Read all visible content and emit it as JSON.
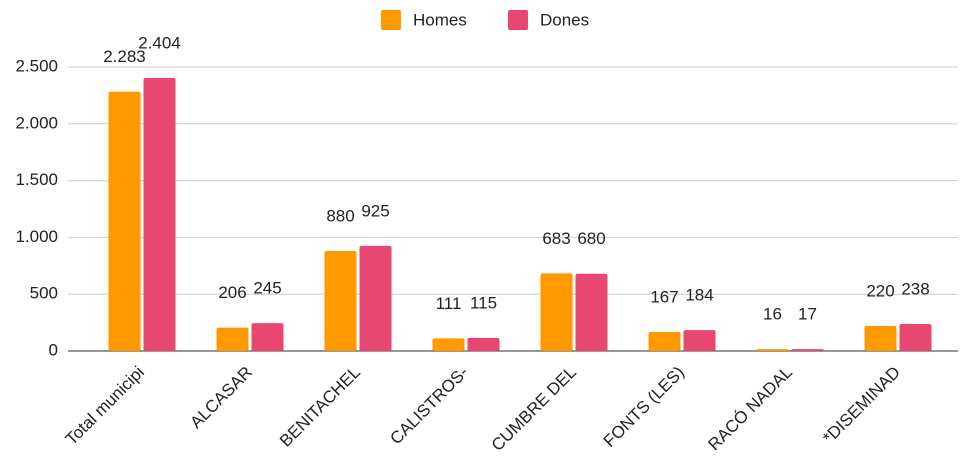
{
  "chart_data": {
    "type": "bar",
    "categories": [
      "Total municipi",
      "ALCASAR",
      "BENITACHEL",
      "CALISTROS-",
      "CUMBRE DEL",
      "FONTS (LES)",
      "RACÓ NADAL",
      "*DISEMINAD"
    ],
    "series": [
      {
        "name": "Homes",
        "color": "#ff9900",
        "values": [
          2283,
          206,
          880,
          111,
          683,
          167,
          16,
          220
        ],
        "value_labels": [
          "2.283",
          "206",
          "880",
          "111",
          "683",
          "167",
          "16",
          "220"
        ]
      },
      {
        "name": "Dones",
        "color": "#e8476f",
        "values": [
          2404,
          245,
          925,
          115,
          680,
          184,
          17,
          238
        ],
        "value_labels": [
          "2.404",
          "245",
          "925",
          "115",
          "680",
          "184",
          "17",
          "238"
        ]
      }
    ],
    "ylim": [
      0,
      2500
    ],
    "yticks": [
      0,
      500,
      {
        "value": 1000,
        "label": "1.000"
      },
      {
        "value": 1500,
        "label": "1.500"
      },
      {
        "value": 2000,
        "label": "2.000"
      },
      {
        "value": 2500,
        "label": "2.500"
      }
    ],
    "grid": true,
    "legend": "top"
  }
}
